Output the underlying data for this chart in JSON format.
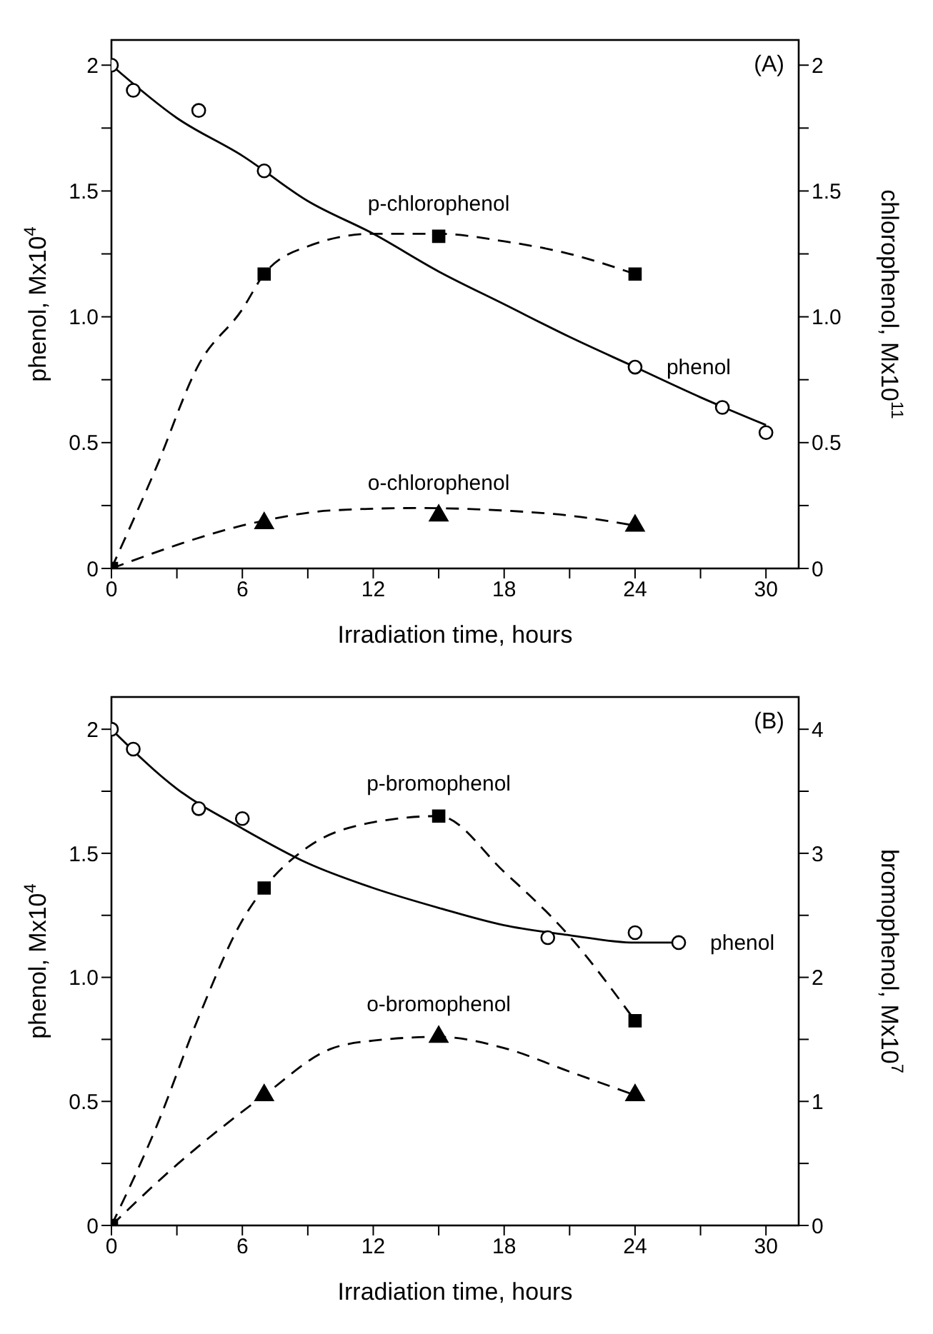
{
  "chart_data": [
    {
      "type": "line",
      "xlabel": "Irradiation time, hours",
      "ylabel": "phenol, Mx10$^{4}$",
      "y2label": "chlorophenol, Mx10$^{11}$",
      "annotations": [
        "(A)"
      ],
      "xlim": [
        0,
        31.5
      ],
      "xticks": [
        0,
        {
          "value": 3,
          "label": null
        },
        6,
        {
          "value": 9,
          "label": null
        },
        12,
        {
          "value": 15,
          "label": null
        },
        18,
        {
          "value": 21,
          "label": null
        },
        24,
        {
          "value": 27,
          "label": null
        },
        30
      ],
      "ylim": [
        0,
        2.1
      ],
      "yticks": [
        0,
        {
          "value": 0.25,
          "label": null
        },
        0.5,
        {
          "value": 0.75,
          "label": null
        },
        {
          "value": 1,
          "label": "1.0"
        },
        {
          "value": 1.25,
          "label": null
        },
        1.5,
        {
          "value": 1.75,
          "label": null
        },
        2
      ],
      "y2lim": [
        0,
        2.1
      ],
      "y2ticks": [
        0,
        {
          "value": 0.25,
          "label": null
        },
        0.5,
        {
          "value": 0.75,
          "label": null
        },
        {
          "value": 1,
          "label": "1.0"
        },
        {
          "value": 1.25,
          "label": null
        },
        1.5,
        {
          "value": 1.75,
          "label": null
        },
        2
      ],
      "series": [
        {
          "name": "phenol",
          "type": "scatter",
          "marker": "circle",
          "color": "#000000",
          "x": [
            0,
            1,
            4,
            7,
            24,
            28,
            30
          ],
          "values": [
            2.0,
            1.9,
            1.82,
            1.58,
            0.8,
            0.64,
            0.54
          ]
        },
        {
          "type": "line",
          "marker": "none",
          "line_style": "solid",
          "color": "#000000",
          "x": [
            0,
            3,
            6,
            9,
            12,
            15,
            18,
            21,
            24,
            27,
            30
          ],
          "values": [
            2.0,
            1.79,
            1.64,
            1.46,
            1.33,
            1.18,
            1.05,
            0.92,
            0.8,
            0.68,
            0.57
          ]
        },
        {
          "name": "p-chlorophenol",
          "type": "scatter",
          "marker": "square",
          "axis": "y2",
          "color": "#000000",
          "x": [
            0,
            7,
            15,
            24
          ],
          "values": [
            0,
            1.17,
            1.32,
            1.17
          ]
        },
        {
          "type": "line",
          "marker": "none",
          "line_style": "dashed",
          "axis": "y2",
          "color": "#000000",
          "x": [
            0,
            2,
            4,
            6,
            7,
            9,
            12,
            15,
            18,
            21,
            24
          ],
          "values": [
            0,
            0.39,
            0.81,
            1.03,
            1.17,
            1.28,
            1.33,
            1.33,
            1.3,
            1.25,
            1.17
          ]
        },
        {
          "name": "o-chlorophenol",
          "type": "scatter",
          "marker": "triangle",
          "axis": "y2",
          "color": "#000000",
          "x": [
            7,
            15,
            24
          ],
          "values": [
            0.18,
            0.21,
            0.17
          ]
        },
        {
          "type": "line",
          "marker": "none",
          "line_style": "dashed",
          "axis": "y2",
          "color": "#000000",
          "x": [
            0,
            7,
            10,
            14,
            18,
            21,
            24
          ],
          "values": [
            0,
            0.19,
            0.23,
            0.24,
            0.23,
            0.21,
            0.17
          ]
        }
      ]
    },
    {
      "type": "line",
      "xlabel": "Irradiation time, hours",
      "ylabel": "phenol, Mx10$^{4}$",
      "y2label": "bromophenol, Mx10$^{7}$",
      "annotations": [
        "(B)"
      ],
      "xlim": [
        0,
        31.5
      ],
      "xticks": [
        0,
        {
          "value": 3,
          "label": null
        },
        6,
        {
          "value": 9,
          "label": null
        },
        12,
        {
          "value": 15,
          "label": null
        },
        18,
        {
          "value": 21,
          "label": null
        },
        24,
        {
          "value": 27,
          "label": null
        },
        30
      ],
      "ylim": [
        0,
        2.13
      ],
      "yticks": [
        0,
        {
          "value": 0.25,
          "label": null
        },
        0.5,
        {
          "value": 0.75,
          "label": null
        },
        {
          "value": 1,
          "label": "1.0"
        },
        {
          "value": 1.25,
          "label": null
        },
        1.5,
        {
          "value": 1.75,
          "label": null
        },
        2
      ],
      "y2lim": [
        0,
        4.26
      ],
      "y2ticks": [
        0,
        {
          "value": 0.5,
          "label": null
        },
        1,
        {
          "value": 1.5,
          "label": null
        },
        2,
        {
          "value": 2.5,
          "label": null
        },
        3,
        {
          "value": 3.5,
          "label": null
        },
        4
      ],
      "series": [
        {
          "name": "phenol",
          "type": "scatter",
          "marker": "circle",
          "color": "#000000",
          "x": [
            0,
            1,
            4,
            6,
            20,
            24,
            26
          ],
          "values": [
            2.0,
            1.92,
            1.68,
            1.64,
            1.16,
            1.18,
            1.14
          ]
        },
        {
          "type": "line",
          "marker": "none",
          "line_style": "solid",
          "color": "#000000",
          "x": [
            0,
            3,
            6,
            9,
            12,
            15,
            18,
            21,
            24,
            26
          ],
          "values": [
            2.0,
            1.76,
            1.6,
            1.46,
            1.36,
            1.28,
            1.21,
            1.17,
            1.14,
            1.14
          ]
        },
        {
          "name": "p-bromophenol",
          "type": "scatter",
          "marker": "square",
          "axis": "y2",
          "color": "#000000",
          "x": [
            0,
            7,
            15,
            24
          ],
          "values": [
            0,
            2.72,
            3.3,
            1.65
          ]
        },
        {
          "type": "line",
          "marker": "none",
          "line_style": "dashed",
          "axis": "y2",
          "color": "#000000",
          "x": [
            0,
            2,
            4,
            6,
            7,
            9,
            12,
            15,
            18,
            21,
            24
          ],
          "values": [
            0,
            0.77,
            1.68,
            2.46,
            2.72,
            3.05,
            3.25,
            3.3,
            2.85,
            2.33,
            1.65
          ]
        },
        {
          "name": "o-bromophenol",
          "type": "scatter",
          "marker": "triangle",
          "axis": "y2",
          "color": "#000000",
          "x": [
            7,
            15,
            24
          ],
          "values": [
            1.05,
            1.52,
            1.05
          ]
        },
        {
          "type": "line",
          "marker": "none",
          "line_style": "dashed",
          "axis": "y2",
          "color": "#000000",
          "x": [
            0,
            3,
            7,
            10,
            12,
            15,
            18,
            21,
            24
          ],
          "values": [
            0,
            0.49,
            1.05,
            1.42,
            1.49,
            1.52,
            1.43,
            1.24,
            1.05
          ]
        }
      ]
    }
  ]
}
